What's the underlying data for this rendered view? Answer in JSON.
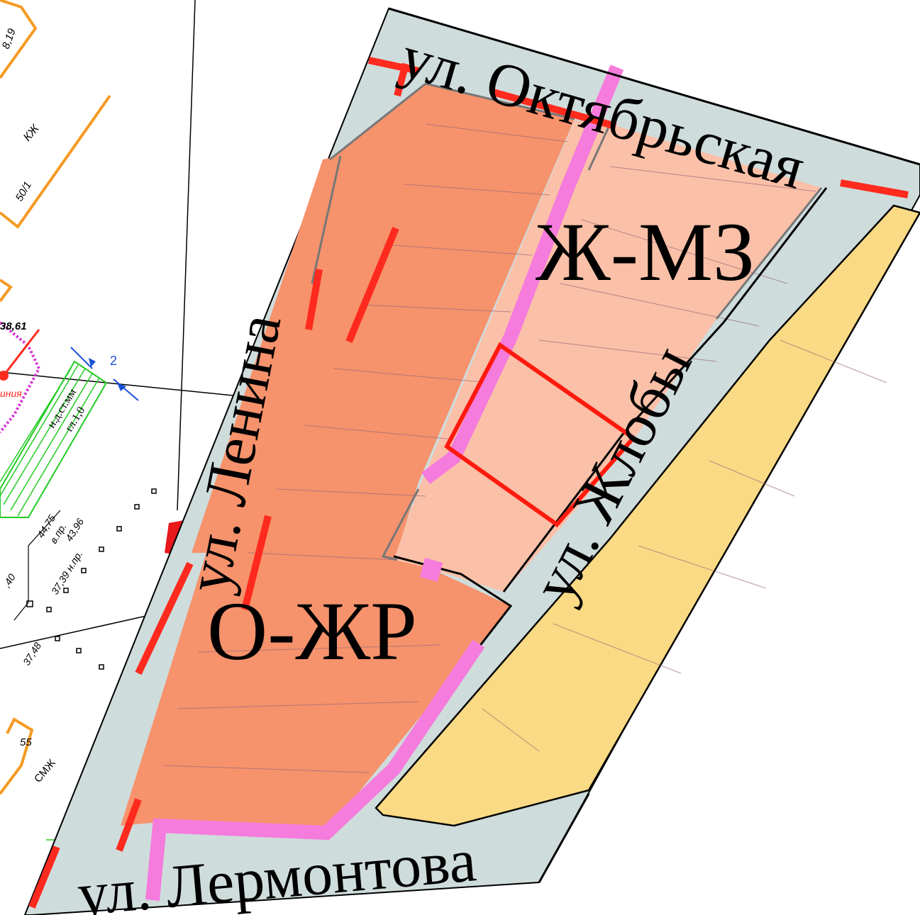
{
  "streets": {
    "oktyabrskaya": "ул. Октябрьская",
    "lenina": "ул. Ленина",
    "zhloby": "ул. Жлобы",
    "lermontova": "ул. Лермонтова"
  },
  "zones": {
    "residential": "Ж-МЗ",
    "public_residential": "О-ЖР"
  },
  "annotations": {
    "kzh": "КЖ",
    "num_50_1": "50/1",
    "num_8_19": "8,19",
    "num_38_61": "38,61",
    "num_2": "2",
    "num_44_75": "44,75",
    "label_vpr": "в.пр.",
    "num_43_96": "43,96",
    "num_37_39": "37,39 н.пр.",
    "num_40": ",40",
    "num_37_48": "37,48",
    "num_55": "55",
    "smzh": "СМЖ",
    "hatch_label": "н.д.ст.мм",
    "hatch_label2": "гл.1,0",
    "red_fragment": "иния"
  },
  "colors": {
    "street_fill": "#cfdcdc",
    "zone_o_zhr": "#f6926c",
    "zone_zh_mz": "#fbc0a8",
    "zone_yellow": "#fada84",
    "red_line": "#ff2a1e",
    "pink_line": "#f57bdc",
    "orange_outline": "#f59a23",
    "green_hatch": "#22cc22"
  }
}
